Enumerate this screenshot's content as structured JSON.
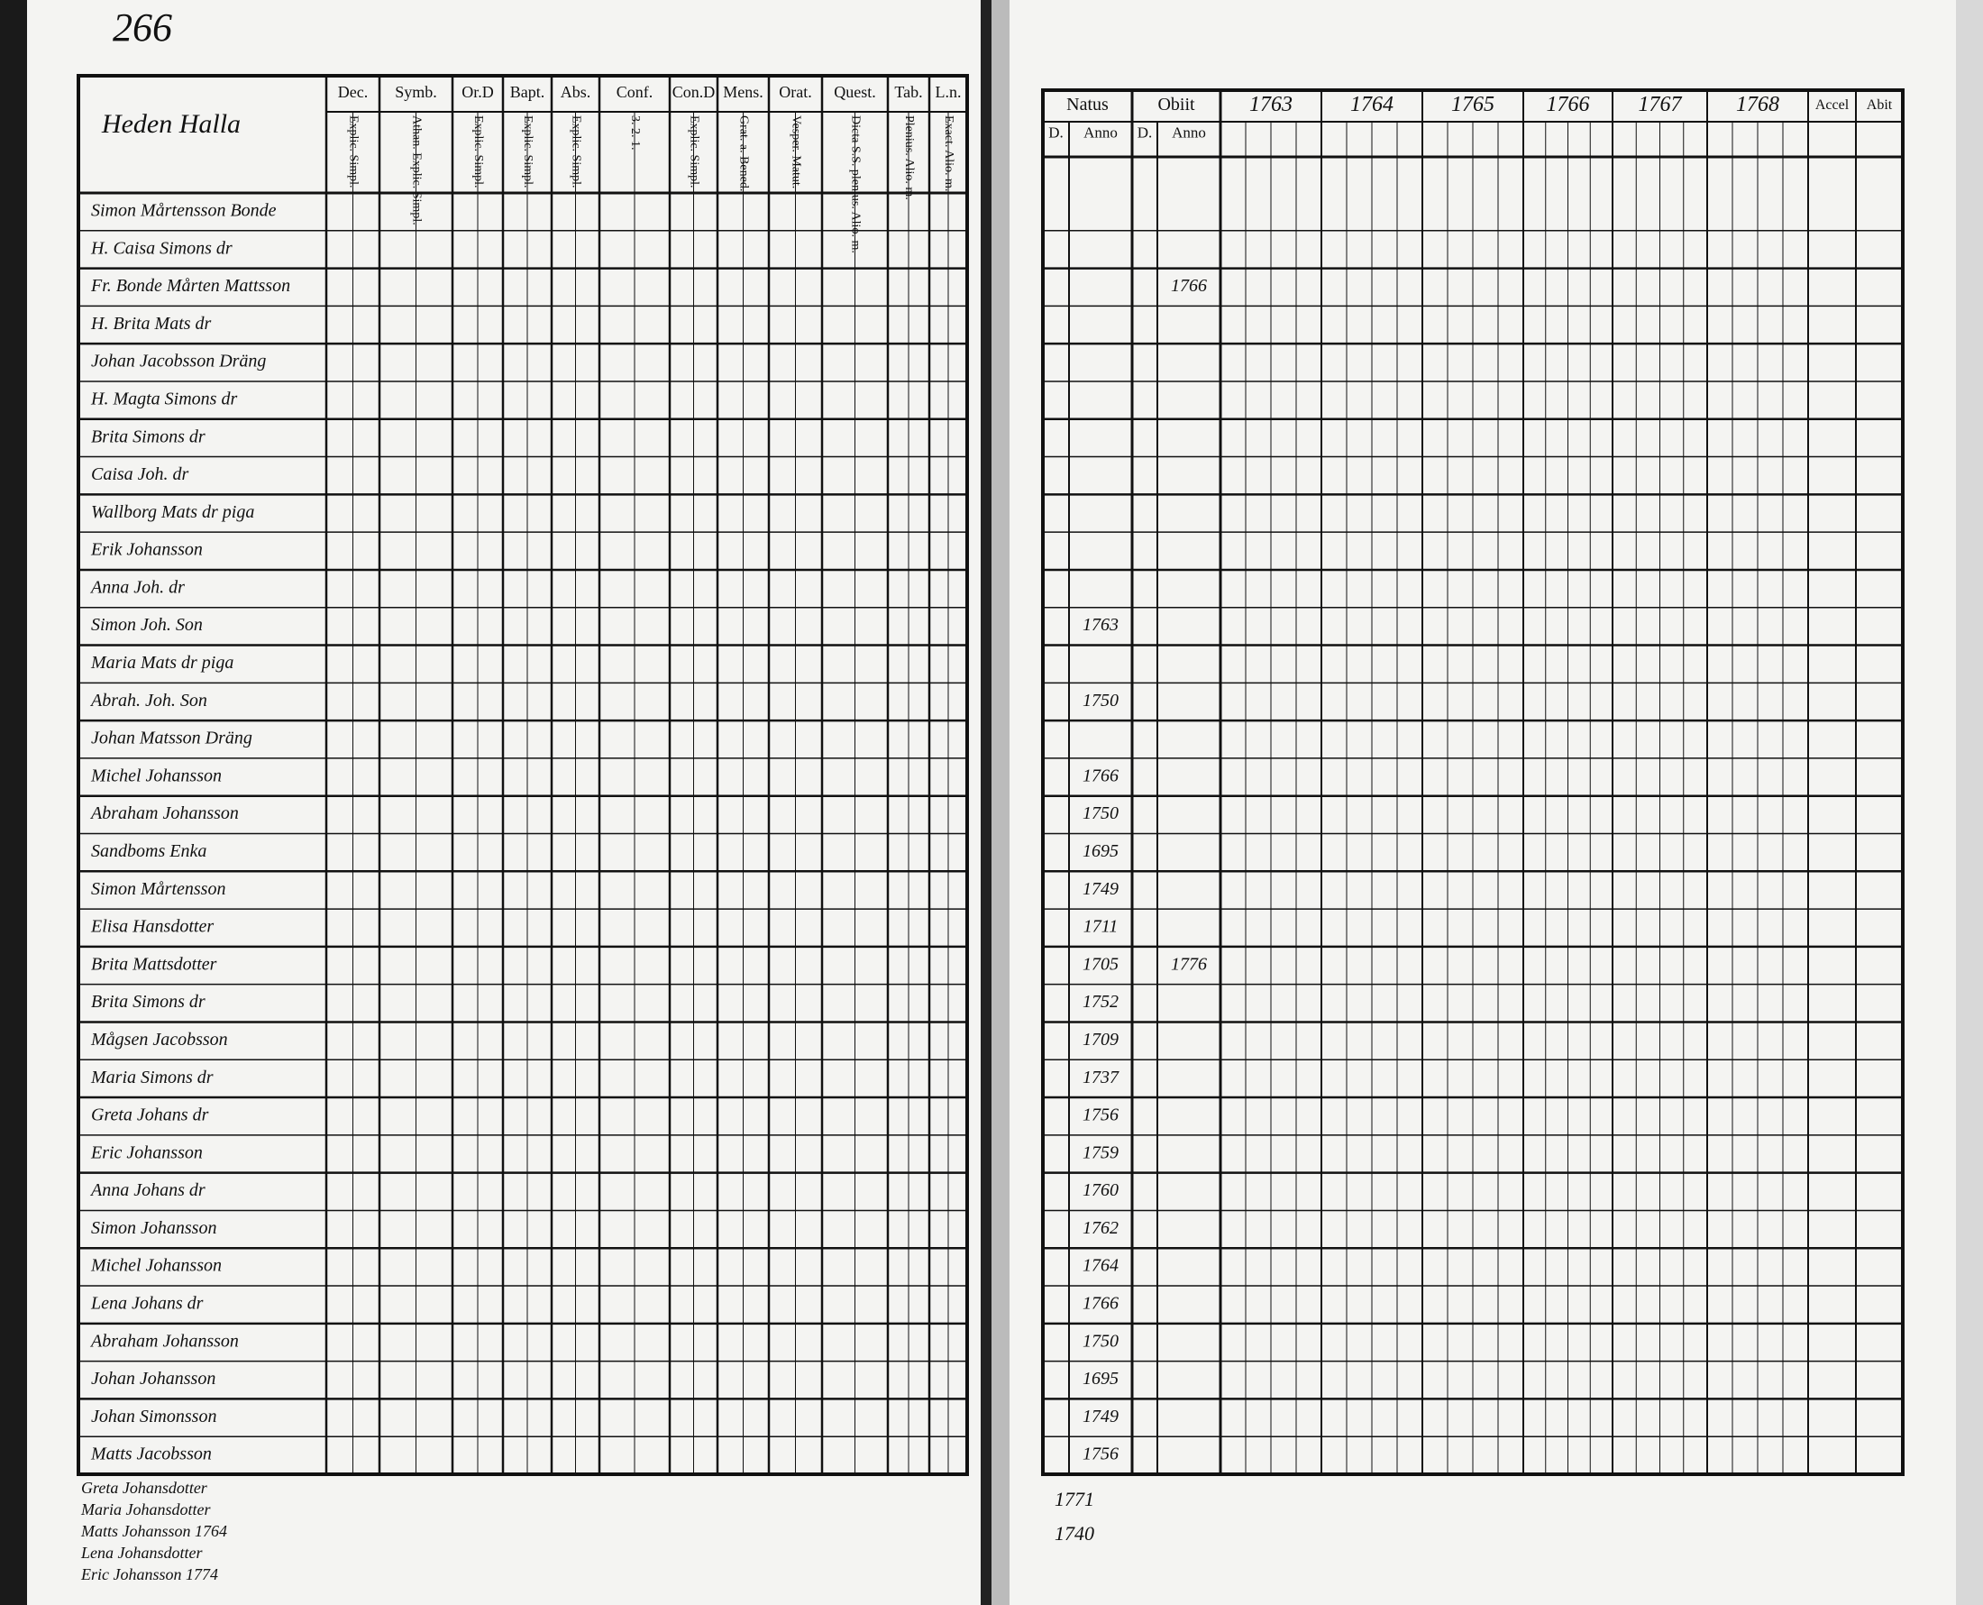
{
  "page_number": "266",
  "left_page": {
    "village": "Heden Halla",
    "columns": [
      {
        "label": "Dec.",
        "sub": "Explic. Simpl."
      },
      {
        "label": "Symb.",
        "sub": "Athan. Explic. Simpl."
      },
      {
        "label": "Or.D",
        "sub": "Explic. Simpl."
      },
      {
        "label": "Bapt.",
        "sub": "Explic. Simpl."
      },
      {
        "label": "Abs.",
        "sub": "Explic. Simpl."
      },
      {
        "label": "Conf.",
        "sub": "3. 2. 1."
      },
      {
        "label": "Con.D",
        "sub": "Explic. Simpl."
      },
      {
        "label": "Mens.",
        "sub": "Grat. a. Bened."
      },
      {
        "label": "Orat.",
        "sub": "Vesper. Matut."
      },
      {
        "label": "Quest.",
        "sub": "Dicta S.S. plenius. Alio. m."
      },
      {
        "label": "Tab.",
        "sub": "Plenius. Alio. m."
      },
      {
        "label": "L.n.",
        "sub": "Exact. Alio. m."
      }
    ],
    "rows": [
      "Simon Mårtensson Bonde",
      "H. Caisa Simons dr",
      "Fr. Bonde Mårten Mattsson",
      "H. Brita Mats dr",
      "Johan Jacobsson Dräng",
      "H. Magta Simons dr",
      "Brita Simons dr",
      "Caisa Joh. dr",
      "Wallborg Mats dr piga",
      "Erik Johansson",
      "Anna Joh. dr",
      "Simon Joh. Son",
      "Maria Mats dr piga",
      "Abrah. Joh. Son",
      "Johan Matsson Dräng",
      "Michel Johansson",
      "Abraham Johansson",
      "Sandboms Enka",
      "Simon Mårtensson",
      "Elisa Hansdotter",
      "Brita Mattsdotter",
      "Brita Simons dr",
      "Mågsen Jacobsson",
      "Maria Simons dr",
      "Greta Johans dr",
      "Eric Johansson",
      "Anna Johans dr",
      "Simon Johansson",
      "Michel Johansson",
      "Lena Johans dr",
      "Abraham Johansson",
      "Johan Johansson",
      "Johan Simonsson",
      "Matts Jacobsson"
    ],
    "notes": [
      "Greta Johansdotter",
      "Maria Johansdotter",
      "Matts Johansson 1764",
      "Lena Johansdotter",
      "Eric Johansson 1774"
    ]
  },
  "right_page": {
    "natus": "Natus",
    "obiit": "Obiit",
    "day": "D.",
    "anno": "Anno",
    "years": [
      "1763",
      "1764",
      "1765",
      "1766",
      "1767",
      "1768"
    ],
    "accel": "Accel",
    "abit": "Abit",
    "natus_anno": [
      null,
      null,
      null,
      null,
      null,
      null,
      null,
      null,
      null,
      null,
      null,
      "1763",
      null,
      "1750",
      null,
      "1766",
      "1750",
      "1695",
      "1749",
      "1711",
      "1705",
      "1752",
      "1709",
      "1737",
      "1756",
      "1759",
      "1760",
      "1762",
      "1764",
      "1766",
      "1750",
      "1695",
      "1749",
      "1756"
    ],
    "obiit_anno": [
      null,
      null,
      "1766",
      null,
      null,
      null,
      null,
      null,
      null,
      null,
      null,
      null,
      null,
      null,
      null,
      null,
      null,
      null,
      null,
      null,
      "1776",
      null,
      null,
      null,
      null,
      null,
      null,
      null,
      null,
      null,
      null,
      null,
      null,
      null
    ],
    "notes": [
      "1771",
      "1740"
    ]
  }
}
